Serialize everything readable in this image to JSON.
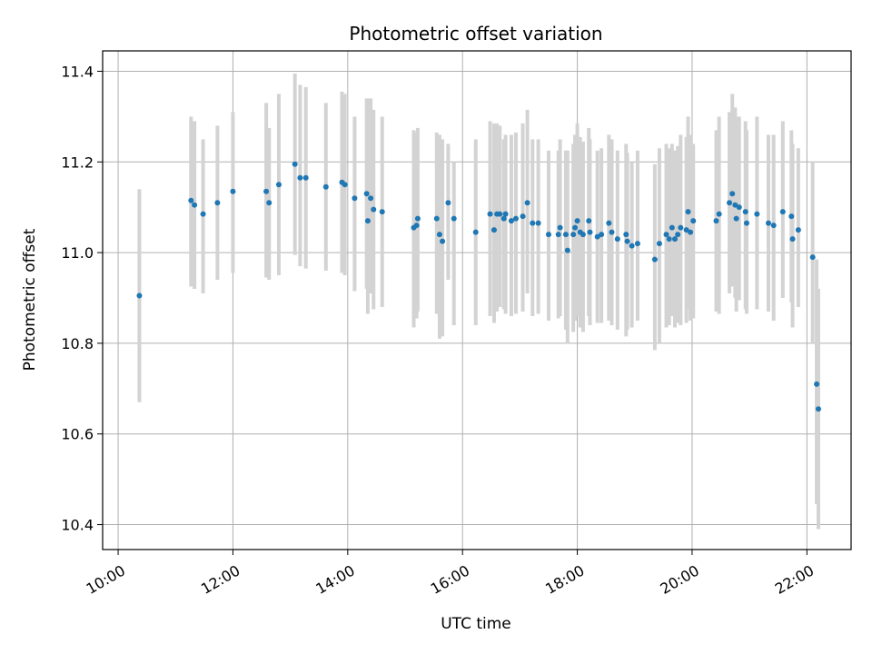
{
  "chart_data": {
    "type": "scatter",
    "title": "Photometric offset variation",
    "xlabel": "UTC time",
    "ylabel": "Photometric offset",
    "x_unit": "hours",
    "xlim": [
      9.73,
      22.77
    ],
    "ylim": [
      10.345,
      11.445
    ],
    "x_ticks": [
      {
        "value": 10,
        "label": "10:00"
      },
      {
        "value": 12,
        "label": "12:00"
      },
      {
        "value": 14,
        "label": "14:00"
      },
      {
        "value": 16,
        "label": "16:00"
      },
      {
        "value": 18,
        "label": "18:00"
      },
      {
        "value": 20,
        "label": "20:00"
      },
      {
        "value": 22,
        "label": "22:00"
      }
    ],
    "y_ticks": [
      {
        "value": 10.4,
        "label": "10.4"
      },
      {
        "value": 10.6,
        "label": "10.6"
      },
      {
        "value": 10.8,
        "label": "10.8"
      },
      {
        "value": 11.0,
        "label": "11.0"
      },
      {
        "value": 11.2,
        "label": "11.2"
      },
      {
        "value": 11.4,
        "label": "11.4"
      }
    ],
    "grid": true,
    "colors": {
      "point": "#1f77b4",
      "errorbar": "#d3d3d3",
      "grid": "#b0b0b0"
    },
    "points": [
      [
        10.37,
        10.905,
        10.67,
        11.14
      ],
      [
        11.27,
        11.115,
        10.925,
        11.3
      ],
      [
        11.33,
        11.105,
        10.92,
        11.29
      ],
      [
        11.48,
        11.085,
        10.91,
        11.25
      ],
      [
        11.73,
        11.11,
        10.94,
        11.28
      ],
      [
        12.0,
        11.135,
        10.955,
        11.31
      ],
      [
        12.58,
        11.135,
        10.945,
        11.33
      ],
      [
        12.63,
        11.11,
        10.94,
        11.275
      ],
      [
        12.8,
        11.15,
        10.95,
        11.35
      ],
      [
        13.08,
        11.195,
        10.995,
        11.395
      ],
      [
        13.17,
        11.165,
        10.97,
        11.37
      ],
      [
        13.27,
        11.165,
        10.965,
        11.365
      ],
      [
        13.62,
        11.145,
        10.96,
        11.33
      ],
      [
        13.9,
        11.155,
        10.955,
        11.355
      ],
      [
        13.95,
        11.15,
        10.95,
        11.35
      ],
      [
        14.12,
        11.12,
        10.915,
        11.3
      ],
      [
        14.33,
        11.13,
        10.92,
        11.34
      ],
      [
        14.35,
        11.07,
        10.865,
        11.34
      ],
      [
        14.4,
        11.12,
        10.91,
        11.34
      ],
      [
        14.45,
        11.095,
        10.875,
        11.315
      ],
      [
        14.6,
        11.09,
        10.88,
        11.3
      ],
      [
        15.15,
        11.055,
        10.835,
        11.27
      ],
      [
        15.2,
        11.06,
        10.855,
        11.265
      ],
      [
        15.22,
        11.075,
        10.87,
        11.275
      ],
      [
        15.55,
        11.075,
        10.865,
        11.265
      ],
      [
        15.6,
        11.04,
        10.81,
        11.26
      ],
      [
        15.65,
        11.025,
        10.815,
        11.25
      ],
      [
        15.75,
        11.11,
        10.94,
        11.24
      ],
      [
        15.85,
        11.075,
        10.84,
        11.2
      ],
      [
        16.23,
        11.045,
        10.84,
        11.25
      ],
      [
        16.48,
        11.085,
        10.86,
        11.29
      ],
      [
        16.55,
        11.05,
        10.845,
        11.285
      ],
      [
        16.6,
        11.085,
        10.87,
        11.285
      ],
      [
        16.65,
        11.085,
        10.88,
        11.28
      ],
      [
        16.72,
        11.075,
        10.875,
        11.25
      ],
      [
        16.75,
        11.085,
        10.865,
        11.26
      ],
      [
        16.85,
        11.07,
        10.86,
        11.26
      ],
      [
        16.93,
        11.075,
        10.865,
        11.265
      ],
      [
        17.05,
        11.08,
        10.87,
        11.285
      ],
      [
        17.13,
        11.11,
        10.91,
        11.315
      ],
      [
        17.22,
        11.065,
        10.86,
        11.25
      ],
      [
        17.32,
        11.065,
        10.865,
        11.25
      ],
      [
        17.5,
        11.04,
        10.85,
        11.225
      ],
      [
        17.67,
        11.04,
        10.855,
        11.225
      ],
      [
        17.7,
        11.055,
        10.86,
        11.25
      ],
      [
        17.8,
        11.04,
        10.83,
        11.225
      ],
      [
        17.83,
        11.005,
        10.8,
        11.225
      ],
      [
        17.93,
        11.04,
        10.825,
        11.24
      ],
      [
        17.96,
        11.055,
        10.85,
        11.26
      ],
      [
        18.0,
        11.07,
        10.86,
        11.285
      ],
      [
        18.05,
        11.045,
        10.835,
        11.255
      ],
      [
        18.1,
        11.04,
        10.825,
        11.245
      ],
      [
        18.2,
        11.07,
        10.86,
        11.275
      ],
      [
        18.22,
        11.045,
        10.84,
        11.25
      ],
      [
        18.35,
        11.035,
        10.845,
        11.225
      ],
      [
        18.42,
        11.04,
        10.845,
        11.23
      ],
      [
        18.55,
        11.065,
        10.85,
        11.26
      ],
      [
        18.6,
        11.045,
        10.84,
        11.25
      ],
      [
        18.7,
        11.03,
        10.83,
        11.225
      ],
      [
        18.85,
        11.04,
        10.815,
        11.24
      ],
      [
        18.87,
        11.025,
        10.83,
        11.22
      ],
      [
        18.95,
        11.015,
        10.835,
        11.2
      ],
      [
        19.05,
        11.02,
        10.85,
        11.225
      ],
      [
        19.35,
        10.985,
        10.785,
        11.195
      ],
      [
        19.43,
        11.02,
        10.8,
        11.23
      ],
      [
        19.55,
        11.04,
        10.835,
        11.24
      ],
      [
        19.6,
        11.03,
        10.84,
        11.23
      ],
      [
        19.65,
        11.055,
        10.86,
        11.24
      ],
      [
        19.7,
        11.03,
        10.835,
        11.225
      ],
      [
        19.75,
        11.04,
        10.845,
        11.235
      ],
      [
        19.8,
        11.055,
        10.84,
        11.26
      ],
      [
        19.9,
        11.05,
        10.845,
        11.255
      ],
      [
        19.93,
        11.09,
        10.875,
        11.3
      ],
      [
        19.97,
        11.045,
        10.85,
        11.26
      ],
      [
        20.02,
        11.07,
        10.855,
        11.24
      ],
      [
        20.42,
        11.07,
        10.87,
        11.27
      ],
      [
        20.47,
        11.085,
        10.865,
        11.3
      ],
      [
        20.65,
        11.11,
        10.91,
        11.31
      ],
      [
        20.7,
        11.13,
        10.925,
        11.35
      ],
      [
        20.75,
        11.105,
        10.9,
        11.32
      ],
      [
        20.77,
        11.075,
        10.87,
        11.3
      ],
      [
        20.82,
        11.1,
        10.895,
        11.3
      ],
      [
        20.93,
        11.09,
        10.875,
        11.29
      ],
      [
        20.95,
        11.065,
        10.865,
        11.27
      ],
      [
        21.13,
        11.085,
        10.875,
        11.3
      ],
      [
        21.33,
        11.065,
        10.87,
        11.26
      ],
      [
        21.42,
        11.06,
        10.85,
        11.26
      ],
      [
        21.58,
        11.09,
        10.9,
        11.29
      ],
      [
        21.73,
        11.08,
        10.89,
        11.27
      ],
      [
        21.75,
        11.03,
        10.835,
        11.24
      ],
      [
        21.85,
        11.05,
        10.88,
        11.23
      ],
      [
        22.1,
        10.99,
        10.8,
        11.2
      ],
      [
        22.17,
        10.71,
        10.445,
        10.985
      ],
      [
        22.2,
        10.655,
        10.39,
        10.92
      ]
    ]
  }
}
